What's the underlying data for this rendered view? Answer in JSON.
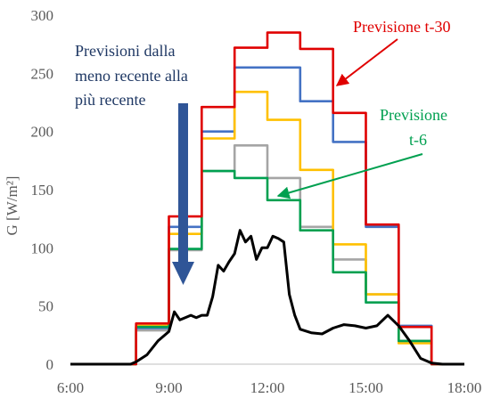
{
  "chart_data": {
    "type": "line",
    "ylabel": "G [W/m²]",
    "xlim": [
      "6:00",
      "18:00"
    ],
    "ylim": [
      0,
      300
    ],
    "x_ticks": [
      "6:00",
      "9:00",
      "12:00",
      "15:00",
      "18:00"
    ],
    "y_ticks": [
      0,
      50,
      100,
      150,
      200,
      250,
      300
    ],
    "grid": false,
    "forecast_hours": [
      "8:00",
      "9:00",
      "10:00",
      "11:00",
      "12:00",
      "13:00",
      "14:00",
      "15:00",
      "16:00",
      "17:00"
    ],
    "series": [
      {
        "color": "#a5a5a5",
        "values": [
          29,
          98,
          166,
          188,
          160,
          118,
          90,
          60,
          20,
          0
        ]
      },
      {
        "color": "#4472c4",
        "values": [
          31,
          118,
          200,
          255,
          255,
          226,
          191,
          118,
          33,
          0
        ]
      },
      {
        "color": "#ffc000",
        "values": [
          33,
          112,
          194,
          234,
          210,
          167,
          103,
          60,
          18,
          0
        ]
      },
      {
        "name": "Previsione t-6",
        "color": "#00a050",
        "values": [
          32,
          99,
          166,
          160,
          141,
          115,
          79,
          53,
          20,
          0
        ]
      },
      {
        "name": "Previsione t-30",
        "color": "#e00000",
        "values": [
          35,
          127,
          221,
          272,
          285,
          271,
          216,
          120,
          32,
          0
        ]
      },
      {
        "color": "#000000",
        "x": [
          "6:00",
          "7:50",
          "8:00",
          "8:20",
          "8:40",
          "9:00",
          "9:10",
          "9:20",
          "9:30",
          "9:40",
          "9:50",
          "10:00",
          "10:10",
          "10:20",
          "10:30",
          "10:40",
          "10:50",
          "11:00",
          "11:10",
          "11:20",
          "11:30",
          "11:40",
          "11:50",
          "12:00",
          "12:10",
          "12:20",
          "12:30",
          "12:40",
          "12:50",
          "13:00",
          "13:20",
          "13:40",
          "14:00",
          "14:20",
          "14:40",
          "15:00",
          "15:20",
          "15:40",
          "16:00",
          "16:20",
          "16:40",
          "17:00",
          "17:20",
          "18:00"
        ],
        "values": [
          0,
          0,
          2,
          8,
          20,
          28,
          45,
          38,
          40,
          42,
          40,
          42,
          42,
          58,
          85,
          80,
          88,
          95,
          115,
          105,
          110,
          90,
          100,
          100,
          110,
          108,
          105,
          60,
          42,
          30,
          27,
          26,
          31,
          34,
          33,
          31,
          33,
          42,
          33,
          20,
          5,
          1,
          0,
          0
        ]
      }
    ],
    "annotations": [
      {
        "text_lines": [
          "Previsioni dalla",
          "meno recente alla",
          "più recente"
        ],
        "color": "#1f3864"
      },
      {
        "text_lines": [
          "Previsione t-30"
        ],
        "color": "#e00000"
      },
      {
        "text_lines": [
          "Previsione",
          "t-6"
        ],
        "color": "#00a050"
      }
    ]
  }
}
